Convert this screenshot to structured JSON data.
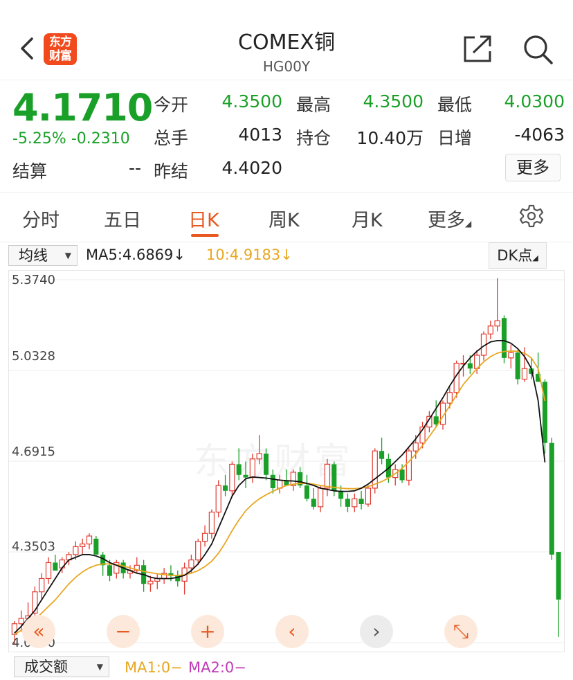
{
  "header": {
    "logo_line1": "东方",
    "logo_line2": "财富",
    "title": "COMEX铜",
    "subtitle": "HG00Y"
  },
  "quote": {
    "price": "4.1710",
    "change": "-5.25%  -0.2310",
    "open_label": "今开",
    "open_value": "4.3500",
    "high_label": "最高",
    "high_value": "4.3500",
    "low_label": "最低",
    "low_value": "4.0300",
    "volume_label": "总手",
    "volume_value": "4013",
    "oi_label": "持仓",
    "oi_value": "10.40万",
    "daily_inc_label": "日增",
    "daily_inc_value": "-4063",
    "settle_label": "结算",
    "settle_value": "--",
    "prev_settle_label": "昨结",
    "prev_settle_value": "4.4020",
    "more_label": "更多",
    "up_color": "#e03c31",
    "down_color": "#1aa028"
  },
  "tabs": [
    {
      "label": "分时"
    },
    {
      "label": "五日"
    },
    {
      "label": "日K"
    },
    {
      "label": "周K"
    },
    {
      "label": "月K"
    },
    {
      "label": "更多"
    }
  ],
  "indicator_bar": {
    "select_label": "均线",
    "ma5_text": "MA5:4.6869↓",
    "ma10_text": "10:4.9183↓",
    "dk_label": "DK点"
  },
  "chart": {
    "watermark": "东方财富",
    "y_labels": [
      "5.3740",
      "5.0328",
      "4.6915",
      "4.3503",
      "4.0090"
    ]
  },
  "chart_data": {
    "type": "candlestick",
    "ylim": [
      4.009,
      5.374
    ],
    "grid": true,
    "y_ticks": [
      5.374,
      5.0328,
      4.6915,
      4.3503,
      4.009
    ],
    "ohlc": [
      [
        4.04,
        4.09,
        4.0,
        4.08
      ],
      [
        4.08,
        4.13,
        4.05,
        4.1
      ],
      [
        4.1,
        4.16,
        4.07,
        4.11
      ],
      [
        4.12,
        4.22,
        4.1,
        4.2
      ],
      [
        4.2,
        4.27,
        4.17,
        4.25
      ],
      [
        4.25,
        4.33,
        4.23,
        4.31
      ],
      [
        4.31,
        4.34,
        4.29,
        4.28
      ],
      [
        4.29,
        4.33,
        4.27,
        4.32
      ],
      [
        4.32,
        4.35,
        4.3,
        4.34
      ],
      [
        4.34,
        4.39,
        4.32,
        4.37
      ],
      [
        4.37,
        4.4,
        4.34,
        4.38
      ],
      [
        4.38,
        4.42,
        4.36,
        4.41
      ],
      [
        4.4,
        4.41,
        4.34,
        4.34
      ],
      [
        4.34,
        4.35,
        4.26,
        4.3
      ],
      [
        4.3,
        4.32,
        4.24,
        4.26
      ],
      [
        4.27,
        4.32,
        4.25,
        4.31
      ],
      [
        4.31,
        4.32,
        4.25,
        4.27
      ],
      [
        4.27,
        4.3,
        4.25,
        4.28
      ],
      [
        4.28,
        4.33,
        4.27,
        4.3
      ],
      [
        4.3,
        4.32,
        4.2,
        4.23
      ],
      [
        4.23,
        4.26,
        4.2,
        4.24
      ],
      [
        4.24,
        4.27,
        4.21,
        4.25
      ],
      [
        4.25,
        4.29,
        4.23,
        4.27
      ],
      [
        4.27,
        4.3,
        4.24,
        4.26
      ],
      [
        4.26,
        4.28,
        4.22,
        4.24
      ],
      [
        4.24,
        4.31,
        4.19,
        4.29
      ],
      [
        4.29,
        4.34,
        4.27,
        4.32
      ],
      [
        4.32,
        4.4,
        4.3,
        4.39
      ],
      [
        4.39,
        4.45,
        4.37,
        4.42
      ],
      [
        4.42,
        4.51,
        4.4,
        4.5
      ],
      [
        4.5,
        4.62,
        4.48,
        4.6
      ],
      [
        4.6,
        4.64,
        4.56,
        4.58
      ],
      [
        4.58,
        4.69,
        4.56,
        4.68
      ],
      [
        4.68,
        4.74,
        4.62,
        4.64
      ],
      [
        4.64,
        4.69,
        4.59,
        4.63
      ],
      [
        4.63,
        4.72,
        4.61,
        4.7
      ],
      [
        4.7,
        4.79,
        4.68,
        4.72
      ],
      [
        4.72,
        4.74,
        4.62,
        4.64
      ],
      [
        4.64,
        4.66,
        4.57,
        4.59
      ],
      [
        4.59,
        4.64,
        4.57,
        4.62
      ],
      [
        4.62,
        4.66,
        4.6,
        4.6
      ],
      [
        4.6,
        4.66,
        4.58,
        4.65
      ],
      [
        4.65,
        4.67,
        4.59,
        4.6
      ],
      [
        4.6,
        4.64,
        4.54,
        4.55
      ],
      [
        4.55,
        4.59,
        4.51,
        4.52
      ],
      [
        4.52,
        4.6,
        4.5,
        4.59
      ],
      [
        4.59,
        4.7,
        4.56,
        4.68
      ],
      [
        4.68,
        4.69,
        4.56,
        4.58
      ],
      [
        4.58,
        4.6,
        4.52,
        4.55
      ],
      [
        4.55,
        4.57,
        4.5,
        4.52
      ],
      [
        4.52,
        4.57,
        4.5,
        4.55
      ],
      [
        4.55,
        4.58,
        4.51,
        4.53
      ],
      [
        4.53,
        4.6,
        4.52,
        4.59
      ],
      [
        4.59,
        4.74,
        4.57,
        4.73
      ],
      [
        4.73,
        4.78,
        4.68,
        4.7
      ],
      [
        4.7,
        4.72,
        4.61,
        4.63
      ],
      [
        4.63,
        4.68,
        4.6,
        4.66
      ],
      [
        4.66,
        4.68,
        4.61,
        4.62
      ],
      [
        4.62,
        4.74,
        4.6,
        4.73
      ],
      [
        4.73,
        4.79,
        4.7,
        4.76
      ],
      [
        4.76,
        4.84,
        4.74,
        4.82
      ],
      [
        4.82,
        4.88,
        4.8,
        4.86
      ],
      [
        4.86,
        4.92,
        4.82,
        4.83
      ],
      [
        4.83,
        4.92,
        4.81,
        4.91
      ],
      [
        4.91,
        4.97,
        4.89,
        4.95
      ],
      [
        4.95,
        5.07,
        4.93,
        5.06
      ],
      [
        5.06,
        5.09,
        5.01,
        5.06
      ],
      [
        5.06,
        5.09,
        5.02,
        5.04
      ],
      [
        5.04,
        5.11,
        5.02,
        5.09
      ],
      [
        5.09,
        5.18,
        5.07,
        5.17
      ],
      [
        5.17,
        5.22,
        5.15,
        5.2
      ],
      [
        5.2,
        5.38,
        5.18,
        5.22
      ],
      [
        5.23,
        5.24,
        5.06,
        5.08
      ],
      [
        5.08,
        5.13,
        5.04,
        5.1
      ],
      [
        5.1,
        5.11,
        4.98,
        5.0
      ],
      [
        5.0,
        5.12,
        4.99,
        5.04
      ],
      [
        5.04,
        5.08,
        5.0,
        5.02
      ],
      [
        5.02,
        5.1,
        4.99,
        4.99
      ],
      [
        4.99,
        5.0,
        4.72,
        4.76
      ],
      [
        4.76,
        4.78,
        4.32,
        4.34
      ],
      [
        4.35,
        4.35,
        4.03,
        4.171
      ]
    ],
    "ma5": [
      4.045,
      4.07,
      4.1,
      4.13,
      4.17,
      4.21,
      4.25,
      4.29,
      4.32,
      4.33,
      4.34,
      4.34,
      4.335,
      4.325,
      4.31,
      4.3,
      4.29,
      4.28,
      4.27,
      4.265,
      4.255,
      4.25,
      4.25,
      4.25,
      4.255,
      4.262,
      4.28,
      4.305,
      4.34,
      4.38,
      4.44,
      4.5,
      4.56,
      4.6,
      4.625,
      4.632,
      4.63,
      4.628,
      4.624,
      4.62,
      4.618,
      4.617,
      4.614,
      4.608,
      4.6,
      4.59,
      4.585,
      4.58,
      4.578,
      4.578,
      4.58,
      4.59,
      4.605,
      4.625,
      4.645,
      4.665,
      4.69,
      4.715,
      4.745,
      4.775,
      4.81,
      4.85,
      4.89,
      4.93,
      4.975,
      5.015,
      5.05,
      5.08,
      5.105,
      5.125,
      5.14,
      5.145,
      5.145,
      5.135,
      5.115,
      5.085,
      5.04,
      4.92,
      4.687
    ],
    "ma10": [
      4.04,
      4.055,
      4.075,
      4.095,
      4.12,
      4.145,
      4.17,
      4.2,
      4.23,
      4.255,
      4.275,
      4.29,
      4.3,
      4.305,
      4.305,
      4.302,
      4.297,
      4.29,
      4.283,
      4.277,
      4.272,
      4.268,
      4.265,
      4.262,
      4.262,
      4.264,
      4.27,
      4.28,
      4.295,
      4.315,
      4.345,
      4.385,
      4.43,
      4.47,
      4.505,
      4.53,
      4.55,
      4.565,
      4.578,
      4.59,
      4.6,
      4.605,
      4.608,
      4.608,
      4.605,
      4.6,
      4.596,
      4.593,
      4.59,
      4.588,
      4.588,
      4.59,
      4.596,
      4.605,
      4.615,
      4.628,
      4.645,
      4.665,
      4.69,
      4.718,
      4.75,
      4.785,
      4.82,
      4.86,
      4.9,
      4.94,
      4.98,
      5.01,
      5.04,
      5.065,
      5.085,
      5.098,
      5.104,
      5.106,
      5.105,
      5.098,
      5.08,
      5.04,
      4.918
    ]
  },
  "controls": [
    "«",
    "−",
    "+",
    "‹",
    "›",
    "⤡"
  ],
  "volume_bar": {
    "select_label": "成交额",
    "ma1_text": "MA1:0−",
    "ma2_text": "MA2:0−"
  }
}
